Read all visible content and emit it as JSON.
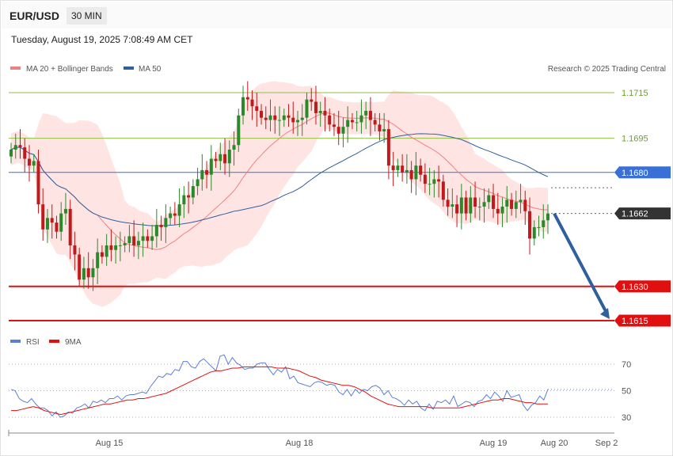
{
  "header": {
    "symbol": "EUR/USD",
    "timeframe": "30 MIN",
    "datetime": "Tuesday, August 19, 2025 7:08:49 AM CET"
  },
  "legend": {
    "main": [
      {
        "name": "MA 20 + Bollinger Bands",
        "color": "#f08080"
      },
      {
        "name": "MA 50",
        "color": "#2f5f9e"
      }
    ],
    "copyright": "Research © 2025 Trading Central",
    "rsi": [
      {
        "name": "RSI",
        "color": "#5b7fd6"
      },
      {
        "name": "9MA",
        "color": "#e01010"
      }
    ]
  },
  "colors": {
    "up": "#2a8a2a",
    "down": "#c21a1a",
    "band": "#ffe1e1",
    "ma20": "#f08080",
    "ma50": "#2f5f9e",
    "support": "#e01010",
    "pivot": "#3a6fd8",
    "resistance": "#8fbf3f",
    "current": "#333333",
    "arrow": "#2f5f9e"
  },
  "chart_data": {
    "type": "candlestick",
    "symbol": "EUR/USD",
    "timeframe": "30 MIN",
    "x_ticks": [
      "Aug 15",
      "Aug 18",
      "Aug 19",
      "Aug 20",
      "Sep 2"
    ],
    "price_range": [
      1.1611,
      1.1722
    ],
    "levels": [
      {
        "value": "1.1715",
        "price": 1.1715,
        "kind": "resistance"
      },
      {
        "value": "1.1695",
        "price": 1.1695,
        "kind": "resistance"
      },
      {
        "value": "1.1680",
        "price": 1.168,
        "kind": "pivot"
      },
      {
        "value": "1.1662",
        "price": 1.1662,
        "kind": "current"
      },
      {
        "value": "1.1630",
        "price": 1.163,
        "kind": "support"
      },
      {
        "value": "1.1615",
        "price": 1.1615,
        "kind": "support"
      }
    ],
    "forecast_arrow": {
      "from": 1.1662,
      "to": 1.1615
    },
    "close_path": [
      1.169,
      1.1692,
      1.1691,
      1.1686,
      1.1683,
      1.1685,
      1.1666,
      1.1655,
      1.166,
      1.1658,
      1.1654,
      1.1662,
      1.1664,
      1.1648,
      1.1644,
      1.1633,
      1.1638,
      1.1634,
      1.1638,
      1.1645,
      1.1643,
      1.1648,
      1.1646,
      1.1648,
      1.1648,
      1.1649,
      1.1652,
      1.1648,
      1.165,
      1.1652,
      1.165,
      1.1652,
      1.1657,
      1.1656,
      1.166,
      1.1662,
      1.1661,
      1.1666,
      1.167,
      1.1669,
      1.1674,
      1.1677,
      1.1681,
      1.1679,
      1.1686,
      1.1685,
      1.1688,
      1.1684,
      1.169,
      1.1692,
      1.1705,
      1.1713,
      1.1712,
      1.1709,
      1.1707,
      1.1704,
      1.1703,
      1.1705,
      1.1703,
      1.1703,
      1.1705,
      1.1704,
      1.1702,
      1.1703,
      1.1704,
      1.1712,
      1.1711,
      1.1706,
      1.1707,
      1.1705,
      1.1701,
      1.17,
      1.1697,
      1.17,
      1.1703,
      1.1702,
      1.1702,
      1.1705,
      1.1707,
      1.1703,
      1.1701,
      1.1698,
      1.1699,
      1.1683,
      1.1681,
      1.1683,
      1.168,
      1.1681,
      1.1677,
      1.1683,
      1.1679,
      1.1675,
      1.1675,
      1.1677,
      1.1676,
      1.1668,
      1.1665,
      1.1666,
      1.1662,
      1.1669,
      1.1662,
      1.1669,
      1.1665,
      1.1665,
      1.1667,
      1.167,
      1.1664,
      1.1662,
      1.1665,
      1.1668,
      1.1664,
      1.1667,
      1.1668,
      1.1663,
      1.1651,
      1.1656,
      1.1656,
      1.1659,
      1.1662
    ],
    "rsi": {
      "y_ticks": [
        30,
        50,
        70
      ],
      "y_range": [
        22,
        80
      ],
      "rsi_values": [
        51,
        50,
        44,
        42,
        41,
        44,
        40,
        37,
        37,
        35,
        31,
        34,
        30,
        31,
        34,
        33,
        37,
        38,
        40,
        37,
        42,
        41,
        43,
        41,
        44,
        44,
        46,
        43,
        46,
        47,
        47,
        48,
        49,
        48,
        53,
        57,
        61,
        60,
        63,
        62,
        66,
        65,
        72,
        72,
        68,
        67,
        72,
        74,
        71,
        68,
        65,
        76,
        77,
        70,
        75,
        71,
        69,
        66,
        67,
        67,
        70,
        71,
        71,
        66,
        62,
        66,
        64,
        68,
        59,
        61,
        56,
        55,
        54,
        53,
        56,
        57,
        56,
        54,
        55,
        54,
        49,
        47,
        51,
        46,
        51,
        48,
        51,
        50,
        53,
        54,
        52,
        47,
        50,
        45,
        44,
        42,
        39,
        43,
        40,
        42,
        37,
        35,
        40,
        36,
        42,
        41,
        43,
        40,
        46,
        38,
        40,
        42,
        41,
        38,
        42,
        43,
        47,
        44,
        49,
        46,
        42,
        50,
        45,
        46,
        47,
        39,
        35,
        39,
        41,
        46,
        43,
        51
      ],
      "ma_values": [
        35,
        35,
        36,
        37,
        38,
        37,
        35,
        34,
        33,
        32,
        33,
        34,
        35,
        36,
        37,
        38,
        39,
        40,
        40,
        41,
        42,
        43,
        43,
        44,
        44,
        45,
        46,
        47,
        48,
        50,
        52,
        54,
        56,
        58,
        60,
        62,
        64,
        65,
        65,
        66,
        67,
        67,
        68,
        68,
        68,
        68,
        68,
        68,
        67,
        67,
        67,
        66,
        65,
        63,
        61,
        60,
        58,
        57,
        56,
        55,
        54,
        54,
        53,
        51,
        49,
        46,
        44,
        42,
        40,
        39,
        38,
        38,
        38,
        38,
        38,
        38,
        37,
        37,
        37,
        37,
        37,
        37,
        38,
        39,
        40,
        41,
        42,
        43,
        43,
        44,
        44,
        43,
        42,
        41,
        41,
        40,
        40,
        40
      ]
    }
  }
}
